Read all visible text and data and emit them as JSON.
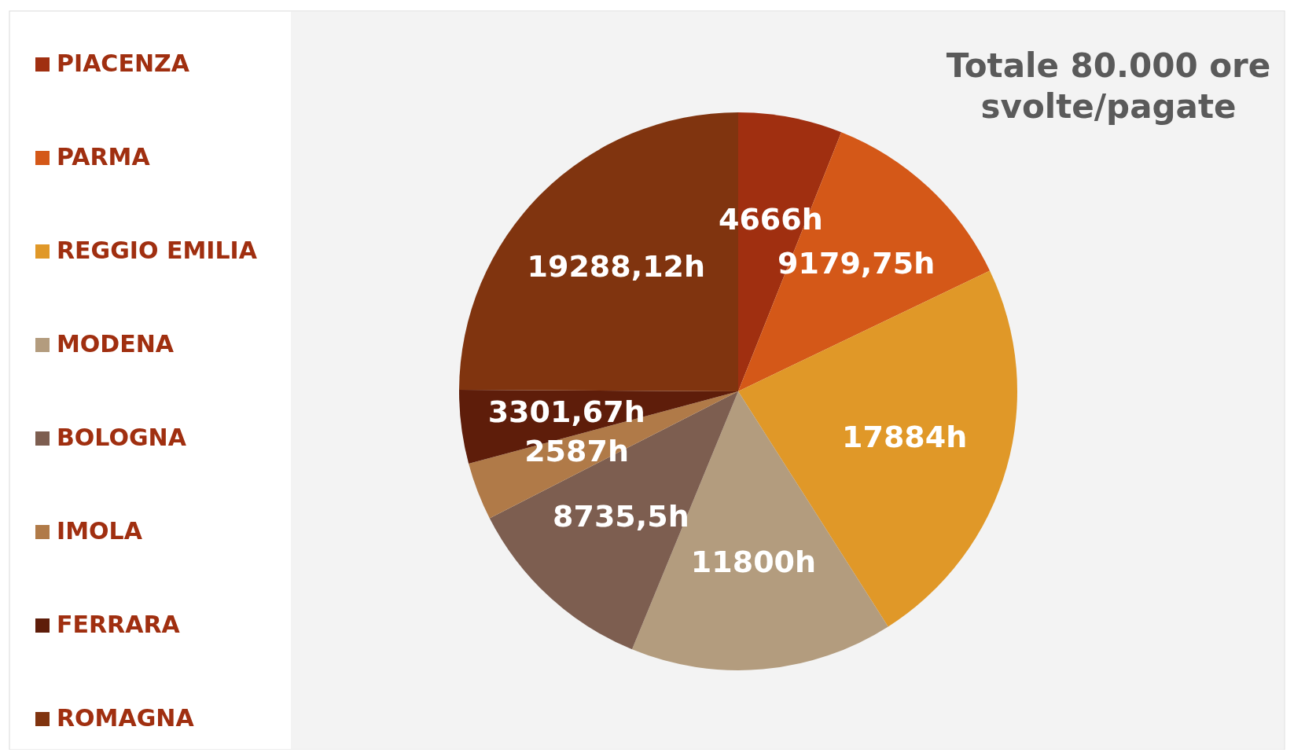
{
  "chart_data": {
    "type": "pie",
    "title": "Totale 80.000 ore svolte/pagate",
    "categories": [
      "PIACENZA",
      "PARMA",
      "REGGIO EMILIA",
      "MODENA",
      "BOLOGNA",
      "IMOLA",
      "FERRARA",
      "ROMAGNA"
    ],
    "values": [
      4666,
      9179.75,
      17884,
      11800,
      8735.5,
      2587,
      3301.67,
      19288.12
    ],
    "colors": [
      "#a02f10",
      "#d45818",
      "#e09828",
      "#b39c7e",
      "#7d5e50",
      "#b07a48",
      "#5e1d0a",
      "#80340f"
    ],
    "value_labels": [
      "4666h",
      "9179,75h",
      "17884h",
      "11800h",
      "8735,5h",
      "2587h",
      "3301,67h",
      "19288,12h"
    ],
    "legend": "left"
  }
}
